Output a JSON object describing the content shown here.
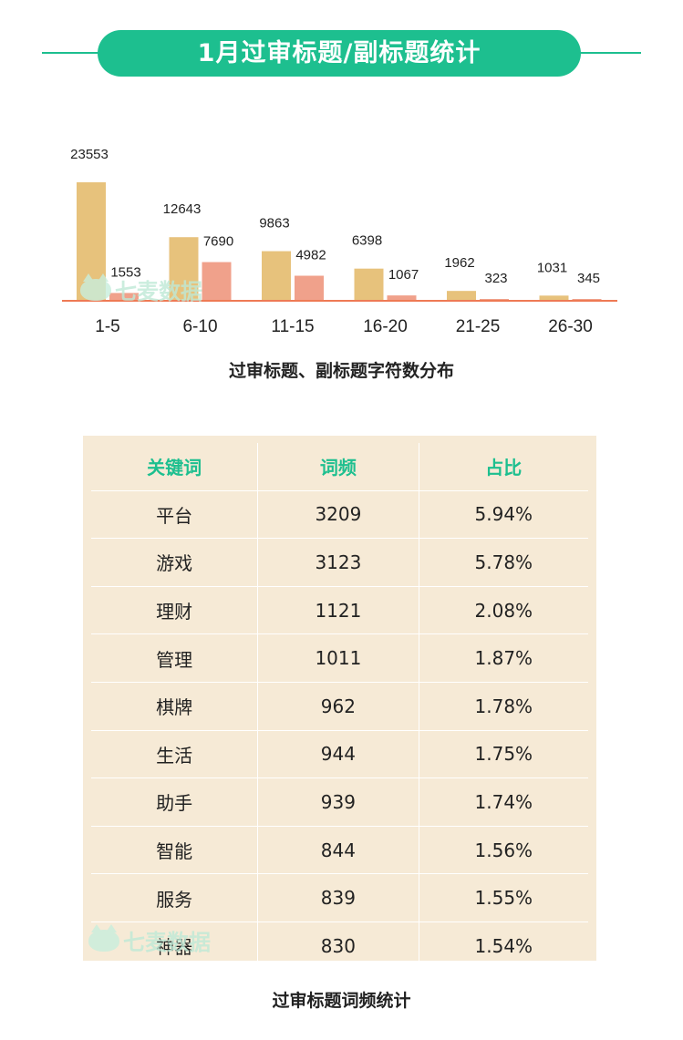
{
  "banner": {
    "title": "1月过审标题/副标题统计"
  },
  "watermark": {
    "text": "七麦数据"
  },
  "chart_data": {
    "type": "bar",
    "title": "",
    "categories": [
      "1-5",
      "6-10",
      "11-15",
      "16-20",
      "21-25",
      "26-30"
    ],
    "series": [
      {
        "values": [
          23553,
          12643,
          9863,
          6398,
          1962,
          1031
        ],
        "color": "#e7c27c"
      },
      {
        "values": [
          1553,
          7690,
          4982,
          1067,
          323,
          345
        ],
        "color": "#f0a18b"
      }
    ],
    "ylim": [
      0,
      25000
    ],
    "axis_color": "#ee7a55",
    "grid": false,
    "caption": "过审标题、副标题字符数分布"
  },
  "table": {
    "headers": [
      "关键词",
      "词频",
      "占比"
    ],
    "rows": [
      [
        "平台",
        "3209",
        "5.94%"
      ],
      [
        "游戏",
        "3123",
        "5.78%"
      ],
      [
        "理财",
        "1121",
        "2.08%"
      ],
      [
        "管理",
        "1011",
        "1.87%"
      ],
      [
        "棋牌",
        "962",
        "1.78%"
      ],
      [
        "生活",
        "944",
        "1.75%"
      ],
      [
        "助手",
        "939",
        "1.74%"
      ],
      [
        "智能",
        "844",
        "1.56%"
      ],
      [
        "服务",
        "839",
        "1.55%"
      ],
      [
        "神器",
        "830",
        "1.54%"
      ]
    ],
    "caption": "过审标题词频统计"
  }
}
